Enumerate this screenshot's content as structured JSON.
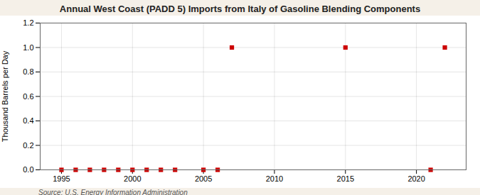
{
  "chart_data": {
    "type": "scatter",
    "title": "Annual West Coast (PADD 5) Imports from Italy of Gasoline Blending Components",
    "ylabel": "Thousand Barrels per Day",
    "annotation": "Source: U.S. Energy Information Administration",
    "x": [
      1995,
      1996,
      1997,
      1998,
      1999,
      2000,
      2001,
      2002,
      2003,
      2005,
      2006,
      2007,
      2015,
      2021,
      2022
    ],
    "values": [
      0.0,
      0.0,
      0.0,
      0.0,
      0.0,
      0.0,
      0.0,
      0.0,
      0.0,
      0.0,
      0.0,
      1.0,
      1.0,
      0.0,
      1.0
    ],
    "color": "#cc0000",
    "marker": "square",
    "xlim": [
      1993.5,
      2023.5
    ],
    "ylim": [
      0.0,
      1.2
    ],
    "xticks": [
      1995,
      2000,
      2005,
      2010,
      2015,
      2020
    ],
    "yticks": [
      {
        "value": 0.0,
        "label": "0.0"
      },
      0.2,
      0.4,
      0.6,
      0.8,
      {
        "value": 1.0,
        "label": "1.0"
      },
      1.2
    ],
    "grid": true
  }
}
